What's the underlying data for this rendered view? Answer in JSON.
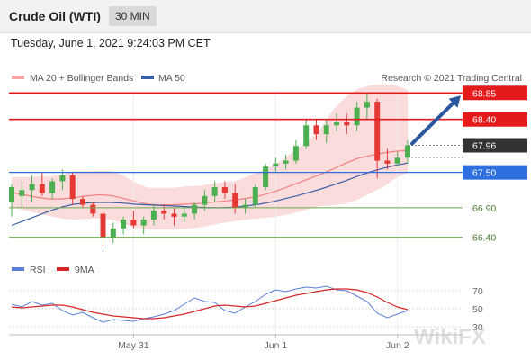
{
  "header": {
    "instrument": "Crude Oil (WTI)",
    "timeframe": "30 MIN"
  },
  "timestamp": "Tuesday, June 1, 2021 9:24:03 PM CET",
  "legend": {
    "ma20": "MA 20 + Bollinger Bands",
    "ma50": "MA 50"
  },
  "copyright": "Research © 2021 Trading Central",
  "colors": {
    "resistance": "#e31b1b",
    "support_blue": "#2e6fe0",
    "support_green": "#6aa84f",
    "last": "#333333",
    "band": "#f9d0d0",
    "ma20": "#f08080",
    "ma50": "#3a5fa8",
    "rsi": "#5b7fd6",
    "rsi_ma": "#d62728",
    "bull": "#4caf50",
    "bear": "#e53935",
    "arrow": "#2c56a0"
  },
  "watermark": "WikiFX",
  "chart_data": [
    {
      "type": "candlestick",
      "ylim": [
        66.15,
        68.9
      ],
      "x_labels": [
        "May 31",
        "Jun 1",
        "Jun 2"
      ],
      "levels": [
        {
          "label": "68.85",
          "value": 68.85,
          "kind": "resistance"
        },
        {
          "label": "68.40",
          "value": 68.4,
          "kind": "resistance"
        },
        {
          "label": "67.96",
          "value": 67.96,
          "kind": "last"
        },
        {
          "label": "67.50",
          "value": 67.5,
          "kind": "support_blue"
        },
        {
          "label": "66.90",
          "value": 66.9,
          "kind": "support_green"
        },
        {
          "label": "66.40",
          "value": 66.4,
          "kind": "support_green"
        }
      ],
      "forecast_arrow": {
        "from": 67.96,
        "to": 68.85
      },
      "series": [
        {
          "name": "MA 20",
          "values": [
            67.16,
            67.12,
            67.08,
            67.05,
            67.05,
            67.07,
            67.1,
            67.12,
            67.11,
            67.06,
            67.01,
            66.96,
            66.95,
            66.95,
            66.96,
            66.97,
            66.99,
            67.01,
            67.03,
            67.06,
            67.1,
            67.16,
            67.23,
            67.31,
            67.39,
            67.47,
            67.56,
            67.66,
            67.74,
            67.79,
            67.83,
            67.86,
            67.87
          ]
        },
        {
          "name": "MA 50",
          "values": [
            66.6,
            66.68,
            66.76,
            66.84,
            66.91,
            66.96,
            66.98,
            66.99,
            66.99,
            66.98,
            66.96,
            66.95,
            66.94,
            66.93,
            66.92,
            66.91,
            66.9,
            66.9,
            66.91,
            66.93,
            66.96,
            67.0,
            67.05,
            67.1,
            67.16,
            67.22,
            67.29,
            67.36,
            67.44,
            67.51,
            67.57,
            67.62,
            67.66
          ]
        }
      ],
      "upper_band": [
        67.42,
        67.42,
        67.43,
        67.43,
        67.46,
        67.52,
        67.52,
        67.53,
        67.53,
        67.45,
        67.33,
        67.24,
        67.24,
        67.24,
        67.26,
        67.27,
        67.3,
        67.33,
        67.35,
        67.43,
        67.51,
        67.61,
        67.73,
        67.89,
        68.04,
        68.25,
        68.57,
        68.78,
        68.92,
        68.98,
        69.0,
        68.98,
        68.9
      ],
      "lower_band": [
        66.91,
        66.86,
        66.81,
        66.76,
        66.72,
        66.7,
        66.71,
        66.72,
        66.7,
        66.63,
        66.56,
        66.53,
        66.53,
        66.53,
        66.54,
        66.56,
        66.6,
        66.64,
        66.67,
        66.7,
        66.72,
        66.74,
        66.77,
        66.82,
        66.88,
        66.93,
        66.94,
        66.97,
        67.04,
        67.15,
        67.25,
        67.4,
        67.5
      ],
      "candles": [
        {
          "o": 67.0,
          "h": 67.3,
          "l": 66.75,
          "c": 67.25
        },
        {
          "o": 67.1,
          "h": 67.35,
          "l": 66.9,
          "c": 67.2
        },
        {
          "o": 67.2,
          "h": 67.45,
          "l": 67.0,
          "c": 67.3
        },
        {
          "o": 67.3,
          "h": 67.5,
          "l": 67.1,
          "c": 67.15
        },
        {
          "o": 67.15,
          "h": 67.4,
          "l": 67.05,
          "c": 67.35
        },
        {
          "o": 67.35,
          "h": 67.55,
          "l": 67.2,
          "c": 67.45
        },
        {
          "o": 67.45,
          "h": 67.5,
          "l": 66.95,
          "c": 67.05
        },
        {
          "o": 67.05,
          "h": 67.1,
          "l": 66.9,
          "c": 66.95
        },
        {
          "o": 66.95,
          "h": 67.0,
          "l": 66.75,
          "c": 66.8
        },
        {
          "o": 66.8,
          "h": 66.85,
          "l": 66.25,
          "c": 66.4
        },
        {
          "o": 66.4,
          "h": 66.65,
          "l": 66.3,
          "c": 66.55
        },
        {
          "o": 66.55,
          "h": 66.75,
          "l": 66.45,
          "c": 66.7
        },
        {
          "o": 66.7,
          "h": 66.85,
          "l": 66.55,
          "c": 66.6
        },
        {
          "o": 66.6,
          "h": 66.75,
          "l": 66.45,
          "c": 66.7
        },
        {
          "o": 66.7,
          "h": 66.95,
          "l": 66.6,
          "c": 66.85
        },
        {
          "o": 66.85,
          "h": 66.95,
          "l": 66.7,
          "c": 66.8
        },
        {
          "o": 66.8,
          "h": 66.9,
          "l": 66.6,
          "c": 66.75
        },
        {
          "o": 66.75,
          "h": 66.9,
          "l": 66.65,
          "c": 66.8
        },
        {
          "o": 66.8,
          "h": 67.0,
          "l": 66.7,
          "c": 66.95
        },
        {
          "o": 66.95,
          "h": 67.2,
          "l": 66.85,
          "c": 67.1
        },
        {
          "o": 67.1,
          "h": 67.35,
          "l": 67.0,
          "c": 67.25
        },
        {
          "o": 67.25,
          "h": 67.35,
          "l": 67.05,
          "c": 67.15
        },
        {
          "o": 67.15,
          "h": 67.3,
          "l": 66.8,
          "c": 66.9
        },
        {
          "o": 66.9,
          "h": 67.05,
          "l": 66.8,
          "c": 66.95
        },
        {
          "o": 66.95,
          "h": 67.3,
          "l": 66.9,
          "c": 67.25
        },
        {
          "o": 67.25,
          "h": 67.65,
          "l": 67.2,
          "c": 67.6
        },
        {
          "o": 67.6,
          "h": 67.75,
          "l": 67.5,
          "c": 67.65
        },
        {
          "o": 67.65,
          "h": 67.8,
          "l": 67.55,
          "c": 67.7
        },
        {
          "o": 67.7,
          "h": 68.05,
          "l": 67.65,
          "c": 67.95
        },
        {
          "o": 67.95,
          "h": 68.4,
          "l": 67.9,
          "c": 68.3
        },
        {
          "o": 68.3,
          "h": 68.4,
          "l": 68.05,
          "c": 68.15
        },
        {
          "o": 68.15,
          "h": 68.4,
          "l": 68.0,
          "c": 68.3
        },
        {
          "o": 68.3,
          "h": 68.5,
          "l": 68.2,
          "c": 68.35
        },
        {
          "o": 68.35,
          "h": 68.5,
          "l": 68.15,
          "c": 68.3
        },
        {
          "o": 68.3,
          "h": 68.7,
          "l": 68.2,
          "c": 68.6
        },
        {
          "o": 68.6,
          "h": 68.85,
          "l": 68.4,
          "c": 68.7
        },
        {
          "o": 68.7,
          "h": 68.75,
          "l": 67.4,
          "c": 67.7
        },
        {
          "o": 67.7,
          "h": 67.9,
          "l": 67.55,
          "c": 67.65
        },
        {
          "o": 67.65,
          "h": 67.85,
          "l": 67.6,
          "c": 67.75
        },
        {
          "o": 67.75,
          "h": 68.05,
          "l": 67.65,
          "c": 67.96
        }
      ]
    },
    {
      "type": "line",
      "title": "RSI",
      "ylim": [
        25,
        78
      ],
      "yticks": [
        "70",
        "50",
        "30"
      ],
      "series": [
        {
          "name": "RSI",
          "values": [
            55,
            52,
            58,
            54,
            56,
            48,
            43,
            46,
            40,
            35,
            38,
            37,
            36,
            39,
            41,
            44,
            48,
            55,
            62,
            58,
            57,
            48,
            45,
            52,
            58,
            66,
            71,
            69,
            72,
            74,
            73,
            75,
            71,
            70,
            64,
            58,
            45,
            40,
            44,
            48
          ]
        },
        {
          "name": "9MA",
          "values": [
            52,
            51,
            52,
            53,
            54,
            54,
            52,
            49,
            46,
            44,
            42,
            41,
            40,
            39,
            39,
            40,
            42,
            44,
            47,
            50,
            53,
            54,
            53,
            52,
            53,
            56,
            59,
            62,
            65,
            67,
            69,
            71,
            72,
            72,
            71,
            68,
            63,
            57,
            52,
            49
          ]
        }
      ]
    }
  ]
}
